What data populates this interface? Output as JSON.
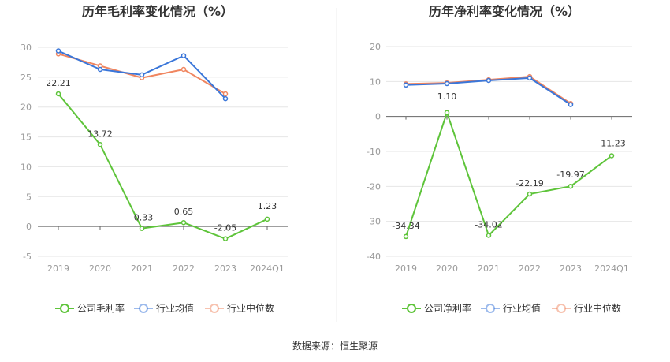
{
  "footer": {
    "source_text": "数据来源：恒生聚源"
  },
  "colors": {
    "company": "#5ec43a",
    "industry_avg": "#3a76d9",
    "industry_median": "#f08660"
  },
  "chart_data": [
    {
      "type": "line",
      "title": "历年毛利率变化情况（%）",
      "categories": [
        "2019",
        "2020",
        "2021",
        "2022",
        "2023",
        "2024Q1"
      ],
      "ylim": [
        -5,
        30
      ],
      "yticks": [
        -5,
        0,
        5,
        10,
        15,
        20,
        25,
        30
      ],
      "series": [
        {
          "name": "公司毛利率",
          "key": "company",
          "values": [
            22.21,
            13.72,
            -0.33,
            0.65,
            -2.05,
            1.23
          ],
          "labels": [
            "22.21",
            "13.72",
            "-0.33",
            "0.65",
            "-2.05",
            "1.23"
          ]
        },
        {
          "name": "行业均值",
          "key": "industry_avg",
          "values": [
            29.4,
            26.3,
            25.4,
            28.6,
            21.4,
            null
          ]
        },
        {
          "name": "行业中位数",
          "key": "industry_median",
          "values": [
            28.9,
            26.9,
            24.9,
            26.3,
            22.2,
            null
          ]
        }
      ]
    },
    {
      "type": "line",
      "title": "历年净利率变化情况（%）",
      "categories": [
        "2019",
        "2020",
        "2021",
        "2022",
        "2023",
        "2024Q1"
      ],
      "ylim": [
        -40,
        20
      ],
      "yticks": [
        -40,
        -30,
        -20,
        -10,
        0,
        10,
        20
      ],
      "series": [
        {
          "name": "公司净利率",
          "key": "company",
          "values": [
            -34.34,
            1.1,
            -34.02,
            -22.19,
            -19.97,
            -11.23
          ],
          "labels": [
            "-34.34",
            "1.10",
            "-34.02",
            "-22.19",
            "-19.97",
            "-11.23"
          ]
        },
        {
          "name": "行业均值",
          "key": "industry_avg",
          "values": [
            9.0,
            9.4,
            10.3,
            11.0,
            3.4,
            null
          ]
        },
        {
          "name": "行业中位数",
          "key": "industry_median",
          "values": [
            9.3,
            9.6,
            10.5,
            11.4,
            3.7,
            null
          ]
        }
      ]
    }
  ]
}
